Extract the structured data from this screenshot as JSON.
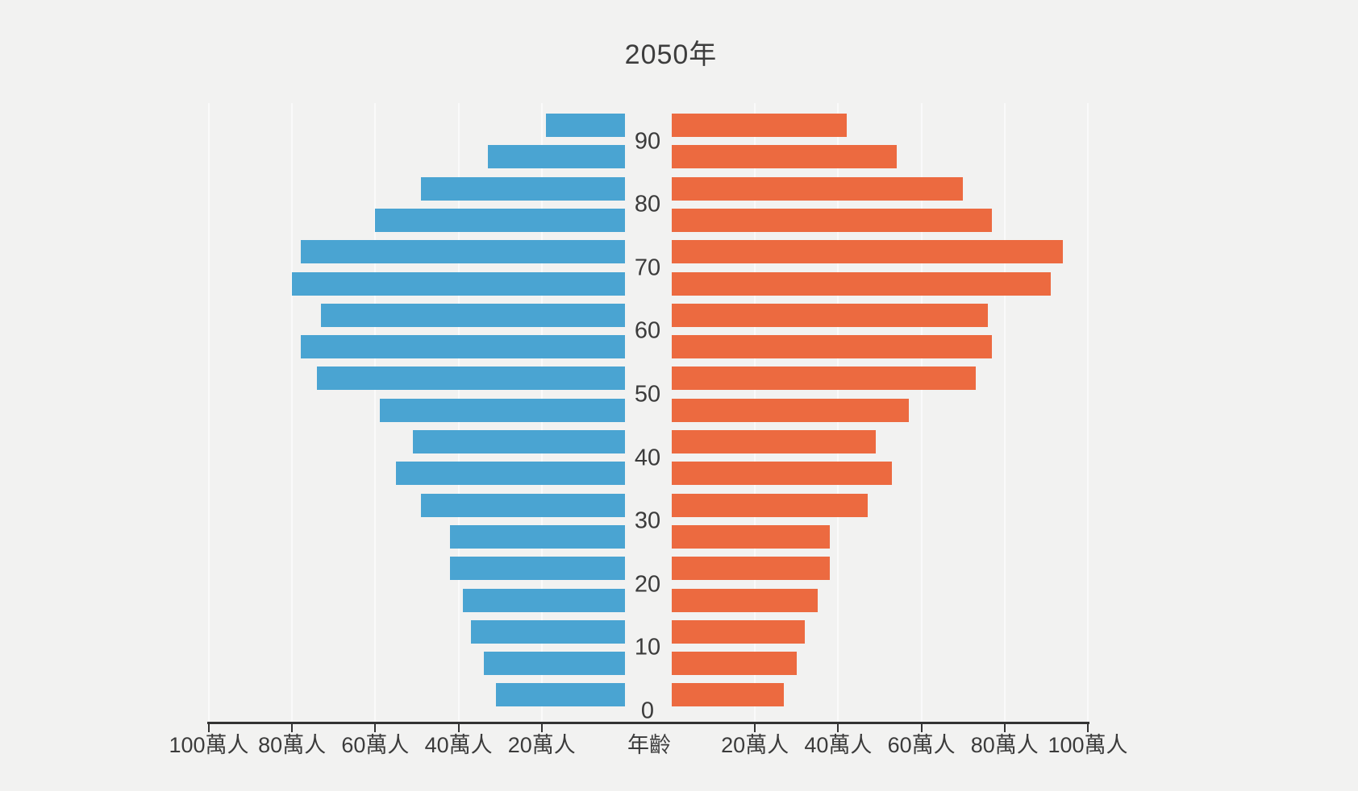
{
  "title": "2050年",
  "chart_data": {
    "type": "bar",
    "subtype": "population-pyramid",
    "title": "2050年",
    "unit": "萬人",
    "age_groups": [
      "0-4",
      "5-9",
      "10-14",
      "15-19",
      "20-24",
      "25-29",
      "30-34",
      "35-39",
      "40-44",
      "45-49",
      "50-54",
      "55-59",
      "60-64",
      "65-69",
      "70-74",
      "75-79",
      "80-84",
      "85-89",
      "90-94"
    ],
    "age_axis_tick_labels": [
      "0",
      "10",
      "20",
      "30",
      "40",
      "50",
      "60",
      "70",
      "80",
      "90"
    ],
    "series": [
      {
        "name": "left",
        "color": "#4aa4d2",
        "values_wan": [
          31,
          34,
          37,
          39,
          42,
          42,
          49,
          55,
          51,
          59,
          74,
          78,
          73,
          80,
          78,
          60,
          49,
          33,
          19
        ]
      },
      {
        "name": "right",
        "color": "#ec6a40",
        "values_wan": [
          27,
          30,
          32,
          35,
          38,
          38,
          47,
          53,
          49,
          57,
          73,
          77,
          76,
          91,
          94,
          77,
          70,
          54,
          42
        ]
      }
    ],
    "x_axis": {
      "left_tick_values": [
        100,
        80,
        60,
        40,
        20
      ],
      "left_tick_labels": [
        "100萬人",
        "80萬人",
        "60萬人",
        "40萬人",
        "20萬人"
      ],
      "right_tick_values": [
        20,
        40,
        60,
        80,
        100
      ],
      "right_tick_labels": [
        "20萬人",
        "40萬人",
        "60萬人",
        "80萬人",
        "100萬人"
      ],
      "center_label": "年齡",
      "max_each_side_wan": 100,
      "grid": true
    },
    "colors": {
      "background": "#f2f2f1",
      "gridline": "#fafafa",
      "axis": "#333333",
      "text": "#3b3b3b"
    },
    "legend": "none"
  }
}
